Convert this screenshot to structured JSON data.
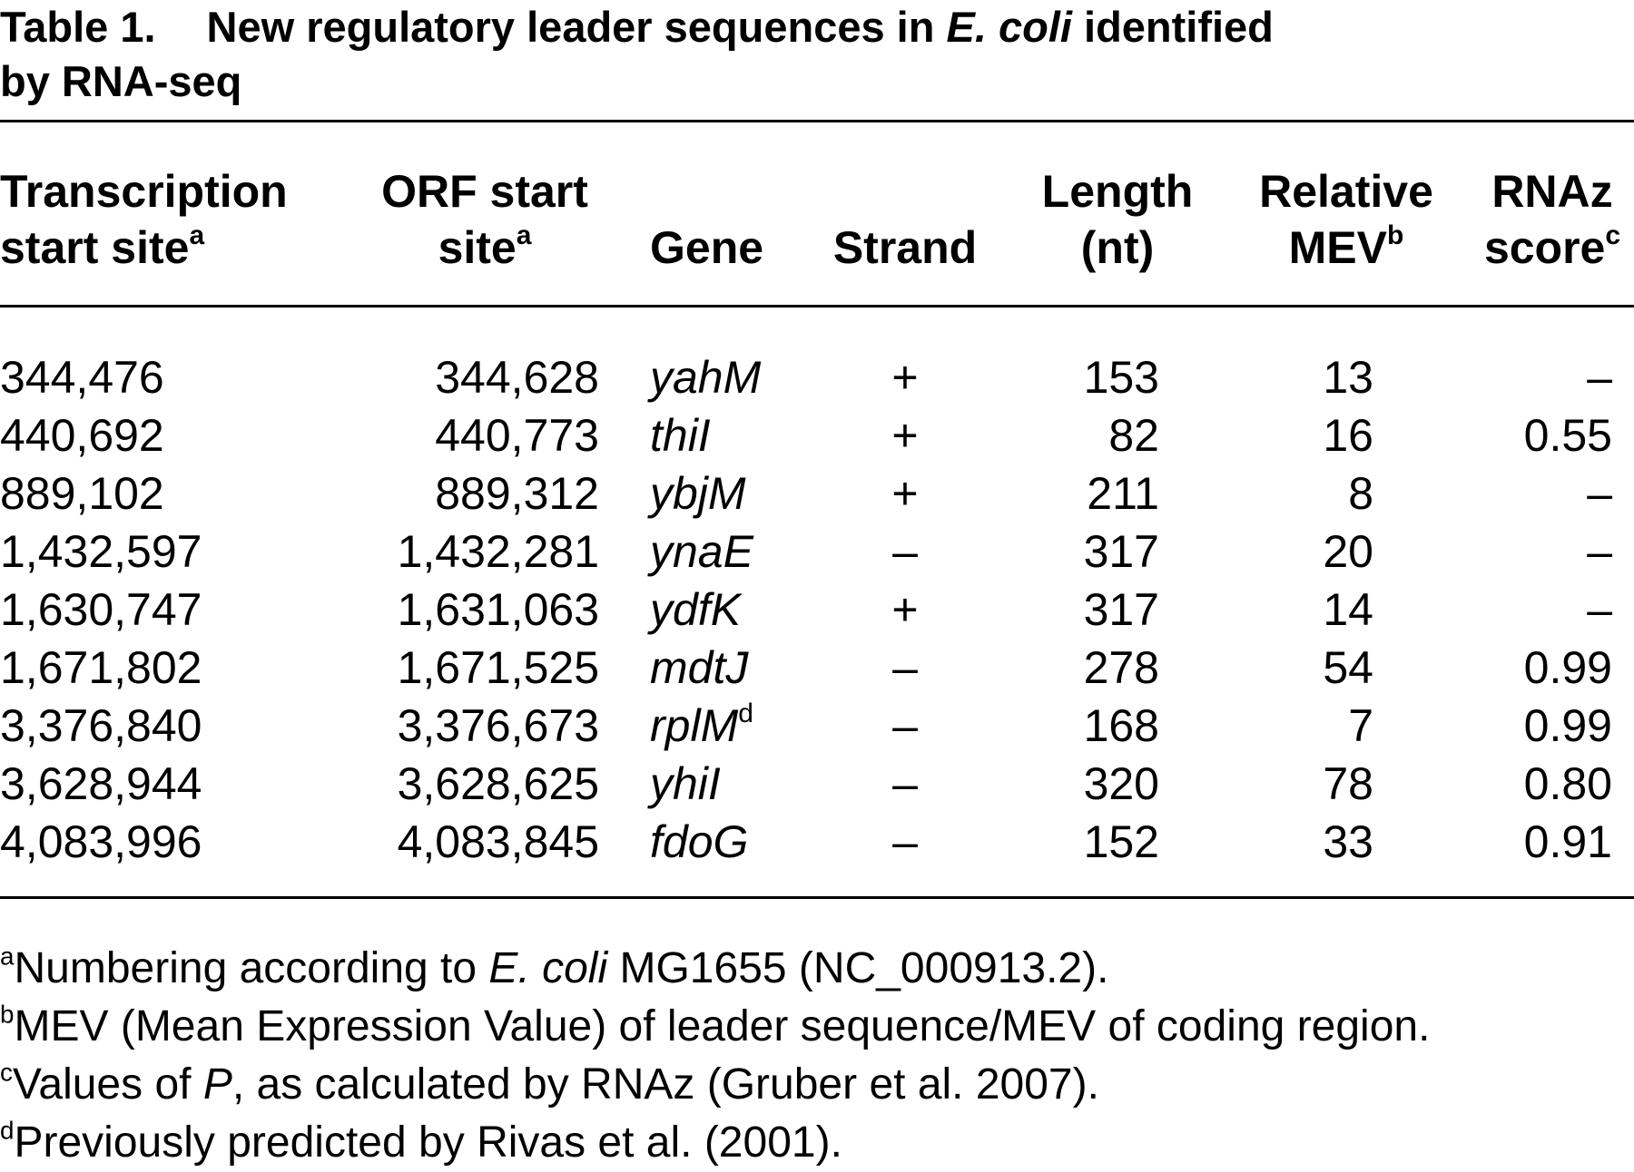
{
  "title": {
    "label": "Table 1.",
    "text_before": "New regulatory leader sequences in ",
    "organism": "E. coli",
    "text_after": " identified",
    "line2": "by RNA-seq"
  },
  "table": {
    "headers": [
      {
        "lines": [
          "Transcription",
          "start site"
        ],
        "sup": "a"
      },
      {
        "lines": [
          "ORF start",
          "site"
        ],
        "sup": "a"
      },
      {
        "lines": [
          "Gene"
        ]
      },
      {
        "lines": [
          "Strand"
        ]
      },
      {
        "lines": [
          "Length",
          "(nt)"
        ]
      },
      {
        "lines": [
          "Relative",
          "MEV"
        ],
        "sup": "b"
      },
      {
        "lines": [
          "RNAz",
          "score"
        ],
        "sup": "c"
      }
    ],
    "rows": [
      [
        "344,476",
        "344,628",
        "yahM",
        "+",
        "153",
        "13",
        "–"
      ],
      [
        "440,692",
        "440,773",
        "thiI",
        "+",
        "82",
        "16",
        "0.55"
      ],
      [
        "889,102",
        "889,312",
        "ybjM",
        "+",
        "211",
        "8",
        "–"
      ],
      [
        "1,432,597",
        "1,432,281",
        "ynaE",
        "–",
        "317",
        "20",
        "–"
      ],
      [
        "1,630,747",
        "1,631,063",
        "ydfK",
        "+",
        "317",
        "14",
        "–"
      ],
      [
        "1,671,802",
        "1,671,525",
        "mdtJ",
        "–",
        "278",
        "54",
        "0.99"
      ],
      [
        "3,376,840",
        "3,376,673",
        {
          "text": "rplM",
          "sup": "d"
        },
        "–",
        "168",
        "7",
        "0.99"
      ],
      [
        "3,628,944",
        "3,628,625",
        "yhiI",
        "–",
        "320",
        "78",
        "0.80"
      ],
      [
        "4,083,996",
        "4,083,845",
        "fdoG",
        "–",
        "152",
        "33",
        "0.91"
      ]
    ]
  },
  "footnotes": [
    {
      "mark": "a",
      "parts": [
        {
          "text": "Numbering according to "
        },
        {
          "text": "E. coli",
          "italic": true
        },
        {
          "text": " MG1655 (NC_000913.2)."
        }
      ]
    },
    {
      "mark": "b",
      "parts": [
        {
          "text": "MEV (Mean Expression Value) of leader sequence/MEV of coding region."
        }
      ]
    },
    {
      "mark": "c",
      "parts": [
        {
          "text": "Values of "
        },
        {
          "text": "P",
          "italic": true
        },
        {
          "text": ", as calculated by RNAz (Gruber et al. 2007)."
        }
      ]
    },
    {
      "mark": "d",
      "parts": [
        {
          "text": "Previously predicted by Rivas et al. (2001)."
        }
      ]
    }
  ]
}
